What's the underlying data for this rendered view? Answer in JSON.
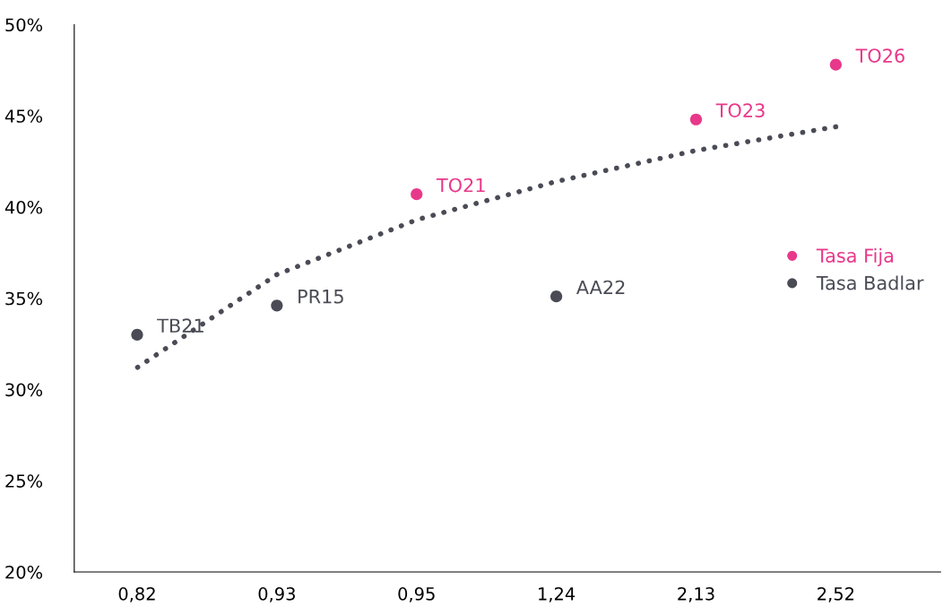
{
  "chart_data": {
    "type": "scatter",
    "categories": [
      "0,82",
      "0,93",
      "0,95",
      "1,24",
      "2,13",
      "2,52"
    ],
    "series": [
      {
        "name": "Tasa Fija",
        "color": "#e8388a",
        "values": [
          null,
          null,
          40.7,
          null,
          44.8,
          47.8
        ]
      },
      {
        "name": "Tasa Badlar",
        "color": "#4a4b55",
        "values": [
          33.0,
          34.6,
          null,
          35.1,
          null,
          null
        ]
      },
      {
        "type": "line",
        "color": "#4a4b55",
        "line_style": "dotted",
        "marker": "none",
        "values": [
          31.2,
          36.3,
          39.3,
          41.4,
          43.1,
          44.4
        ]
      }
    ],
    "annotations": [
      {
        "text": "TB21",
        "x": "0,82",
        "y": 33.0
      },
      {
        "text": "PR15",
        "x": "0,93",
        "y": 34.6
      },
      {
        "text": "TO21",
        "x": "0,95",
        "y": 40.7
      },
      {
        "text": "AA22",
        "x": "1,24",
        "y": 35.1
      },
      {
        "text": "TO23",
        "x": "2,13",
        "y": 44.8
      },
      {
        "text": "TO26",
        "x": "2,52",
        "y": 47.8
      }
    ],
    "ylim": [
      20,
      50
    ],
    "yticks": [
      {
        "value": 20,
        "label": "20%"
      },
      {
        "value": 25,
        "label": "25%"
      },
      {
        "value": 30,
        "label": "30%"
      },
      {
        "value": 35,
        "label": "35%"
      },
      {
        "value": 40,
        "label": "40%"
      },
      {
        "value": 45,
        "label": "45%"
      },
      {
        "value": 50,
        "label": "50%"
      }
    ],
    "grid": false,
    "legend": "right",
    "marker": "circle"
  }
}
